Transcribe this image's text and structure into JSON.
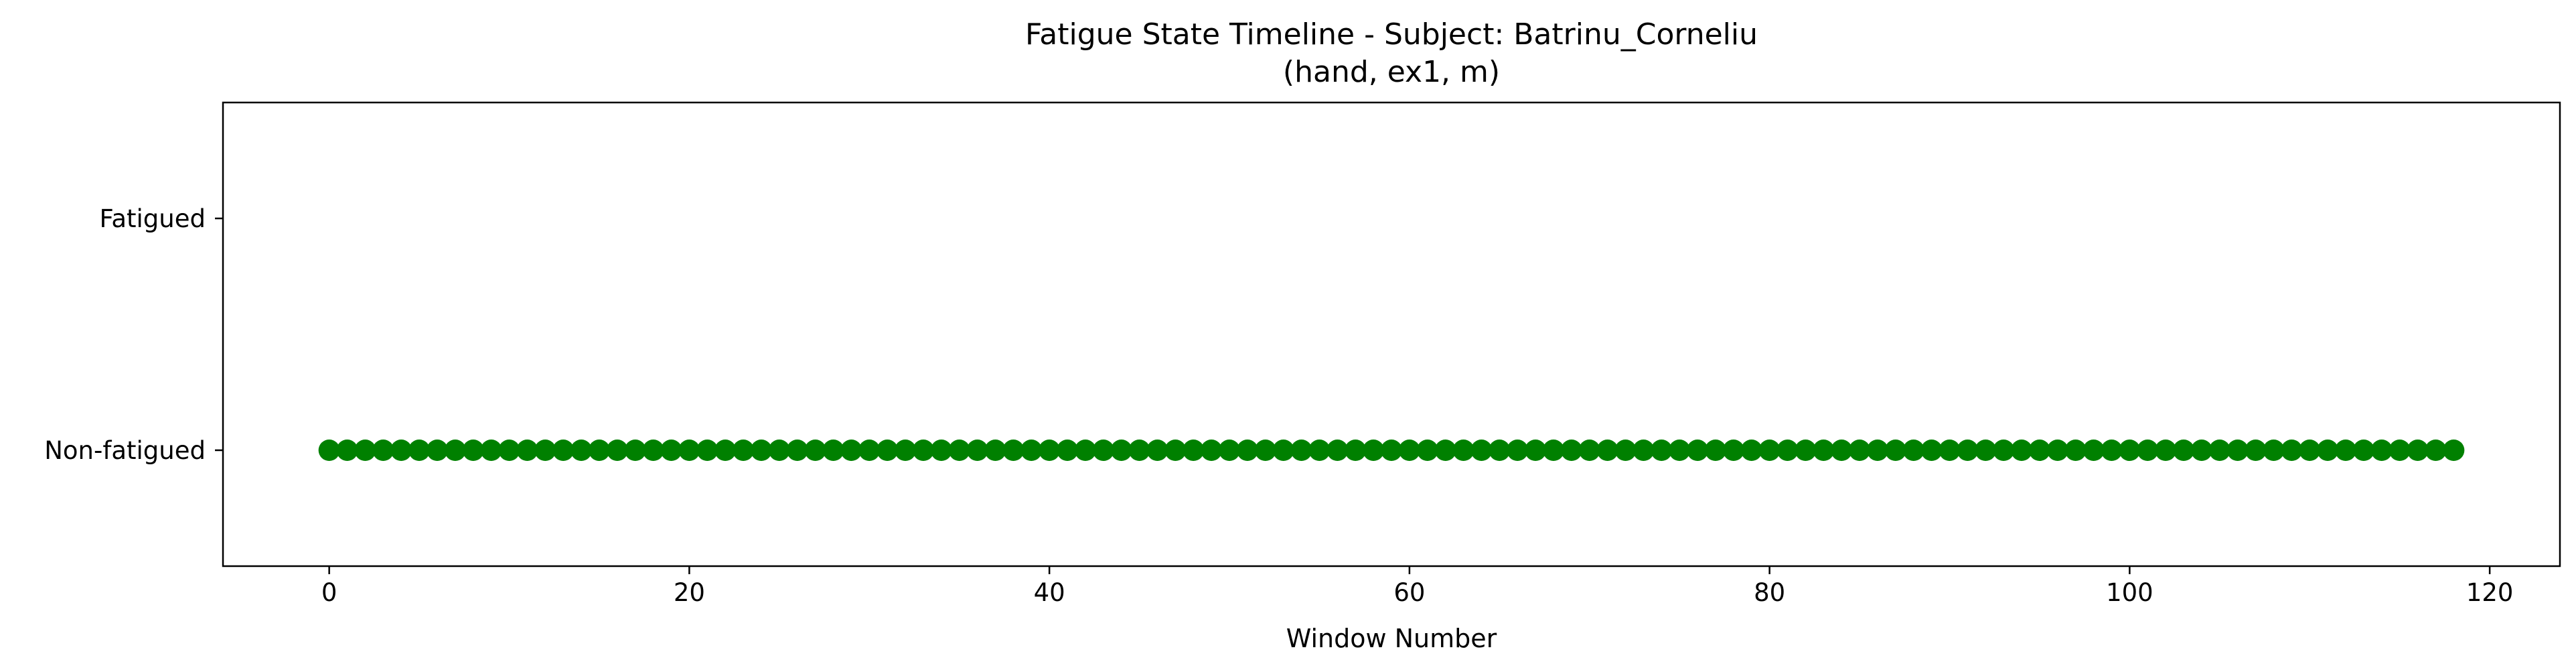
{
  "chart_data": {
    "type": "scatter",
    "title": "Fatigue State Timeline - Subject: Batrinu_Corneliu",
    "subtitle": "(hand, ex1, m)",
    "xlabel": "Window Number",
    "ylabel": "",
    "xlim": [
      -5.9,
      123.9
    ],
    "ylim": [
      -0.5,
      1.5
    ],
    "xticks": [
      0,
      20,
      40,
      60,
      80,
      100,
      120
    ],
    "yticks": [
      {
        "value": 1,
        "label": "Fatigued"
      },
      {
        "value": 0,
        "label": "Non-fatigued"
      }
    ],
    "grid": false,
    "series": [
      {
        "color": "#008000",
        "x_start": 0,
        "x_end": 118,
        "x_step": 1,
        "y": 0
      }
    ]
  }
}
